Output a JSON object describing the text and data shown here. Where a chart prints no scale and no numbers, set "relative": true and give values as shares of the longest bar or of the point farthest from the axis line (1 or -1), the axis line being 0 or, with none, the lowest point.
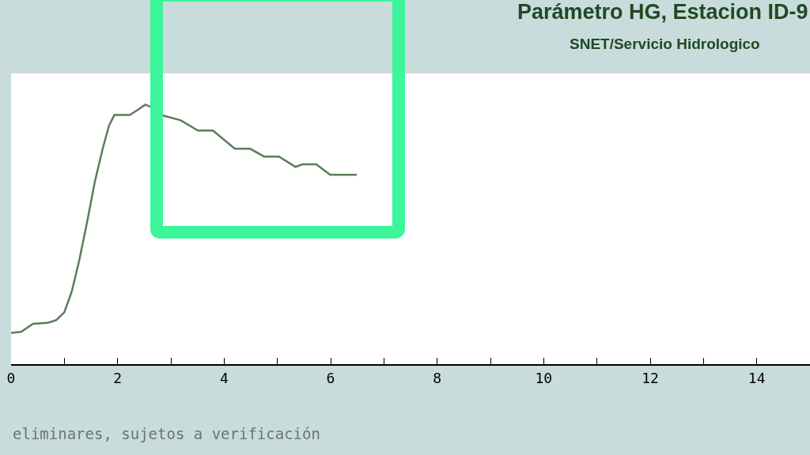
{
  "chart_data": {
    "type": "line",
    "title": "Parámetro HG, Estacion ID-9",
    "subtitle": "SNET/Servicio Hidrologico",
    "annotations": [
      "eliminares, sujetos a verificación"
    ],
    "relative": true,
    "xlim": [
      0,
      15
    ],
    "xticks": [
      0,
      {
        "value": 1,
        "label": null
      },
      2,
      {
        "value": 3,
        "label": null
      },
      4,
      {
        "value": 5,
        "label": null
      },
      6,
      {
        "value": 7,
        "label": null
      },
      8,
      {
        "value": 9,
        "label": null
      },
      10,
      {
        "value": 11,
        "label": null
      },
      12,
      {
        "value": 13,
        "label": null
      },
      14
    ],
    "series": [
      {
        "color": "#5a7d5a",
        "x": [
          0,
          0.19,
          0.41,
          0.7,
          0.85,
          1.0,
          1.14,
          1.28,
          1.43,
          1.57,
          1.72,
          1.84,
          1.94,
          2.16,
          2.23,
          2.38,
          2.52,
          2.64,
          2.81,
          3.18,
          3.51,
          3.79,
          4.2,
          4.49,
          4.75,
          5.03,
          5.34,
          5.47,
          5.73,
          5.99,
          6.49
        ],
        "values": [
          0.12,
          0.125,
          0.155,
          0.16,
          0.17,
          0.2,
          0.28,
          0.4,
          0.55,
          0.7,
          0.83,
          0.92,
          0.96,
          0.96,
          0.96,
          0.98,
          1.0,
          0.99,
          0.96,
          0.94,
          0.9,
          0.9,
          0.83,
          0.83,
          0.8,
          0.8,
          0.76,
          0.77,
          0.77,
          0.73,
          0.73
        ]
      }
    ],
    "line_style": "solid"
  }
}
